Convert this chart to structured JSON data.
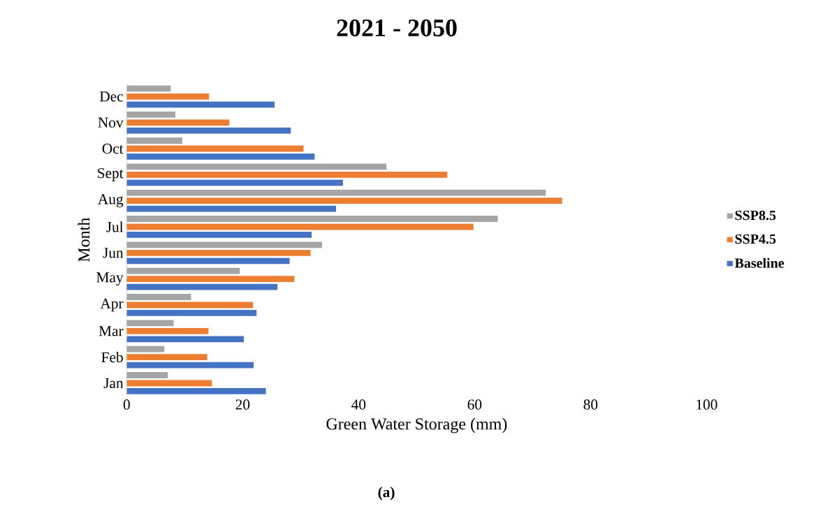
{
  "chart_data": {
    "type": "bar",
    "orientation": "horizontal",
    "title": "2021 - 2050",
    "xlabel": "Green Water Storage (mm)",
    "ylabel": "Month",
    "categories": [
      "Dec",
      "Nov",
      "Oct",
      "Sept",
      "Aug",
      "Jul",
      "Jun",
      "May",
      "Apr",
      "Mar",
      "Feb",
      "Jan"
    ],
    "series": [
      {
        "name": "Baseline",
        "color": "#4472c4",
        "values": [
          25.5,
          28.3,
          32.4,
          37.3,
          36.1,
          31.9,
          28.1,
          26.0,
          22.4,
          20.2,
          21.9,
          24.0
        ]
      },
      {
        "name": "SSP4.5",
        "color": "#ed7d31",
        "values": [
          14.2,
          17.7,
          30.5,
          55.3,
          75.1,
          59.8,
          31.7,
          28.9,
          21.8,
          14.1,
          13.9,
          14.7
        ]
      },
      {
        "name": "SSP8.5",
        "color": "#a5a5a5",
        "values": [
          7.6,
          8.4,
          9.6,
          44.8,
          72.3,
          64.0,
          33.7,
          19.5,
          11.1,
          8.1,
          6.5,
          7.1
        ]
      }
    ],
    "xlim": [
      0,
      100
    ],
    "xticks": [
      0,
      20,
      40,
      60,
      80,
      100
    ],
    "legend": "right",
    "annotations": [
      "(a)"
    ]
  }
}
